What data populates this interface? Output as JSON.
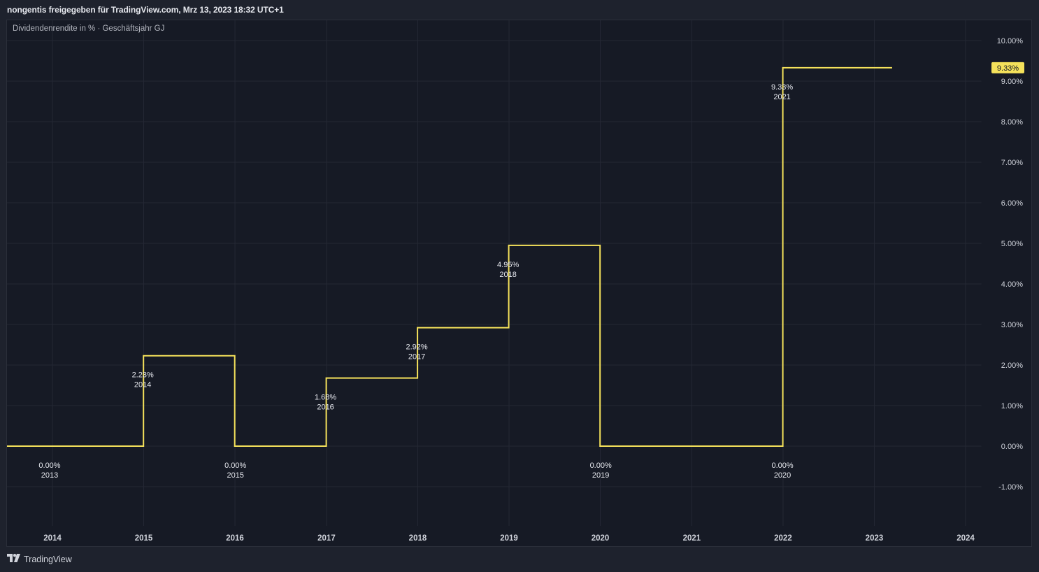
{
  "header": {
    "shared_by": "nongentis freigegeben für TradingView.com, Mrz 13, 2023 18:32 UTC+1"
  },
  "legend": {
    "title": "Dividendenrendite in % · Geschäftsjahr GJ"
  },
  "footer": {
    "brand": "TradingView",
    "logo_icon": "tradingview-logo-icon"
  },
  "colors": {
    "background": "#161a25",
    "frame": "#1e222d",
    "grid": "#242834",
    "line": "#f5e25b",
    "text": "#d1d4dc",
    "badge_bg": "#f5e25b",
    "badge_text": "#131722"
  },
  "chart_data": {
    "type": "line",
    "step": true,
    "title": "",
    "xlabel": "",
    "ylabel": "",
    "ylim": [
      -1.0,
      10.0
    ],
    "xlim": [
      "2013-07-01",
      "2024-01-31"
    ],
    "y_ticks": [
      "10.00%",
      "9.00%",
      "8.00%",
      "7.00%",
      "6.00%",
      "5.00%",
      "4.00%",
      "3.00%",
      "2.00%",
      "1.00%",
      "0.00%",
      "-1.00%"
    ],
    "x_ticks": [
      "2014",
      "2015",
      "2016",
      "2017",
      "2018",
      "2019",
      "2020",
      "2021",
      "2022",
      "2023",
      "2024"
    ],
    "grid": true,
    "series": [
      {
        "points": [
          {
            "fy": "2013",
            "value": 0.0,
            "label": "0.00%",
            "start": "2013-07-01",
            "end": "2014-12-31"
          },
          {
            "fy": "2014",
            "value": 2.23,
            "label": "2.23%",
            "start": "2014-12-31",
            "end": "2015-12-31"
          },
          {
            "fy": "2015",
            "value": 0.0,
            "label": "0.00%",
            "start": "2015-12-31",
            "end": "2016-12-31"
          },
          {
            "fy": "2016",
            "value": 1.68,
            "label": "1.68%",
            "start": "2016-12-31",
            "end": "2017-12-31"
          },
          {
            "fy": "2017",
            "value": 2.92,
            "label": "2.92%",
            "start": "2017-12-31",
            "end": "2018-12-31"
          },
          {
            "fy": "2018",
            "value": 4.95,
            "label": "4.95%",
            "start": "2018-12-31",
            "end": "2019-12-31"
          },
          {
            "fy": "2019",
            "value": 0.0,
            "label": "0.00%",
            "start": "2019-12-31",
            "end": "2020-12-31"
          },
          {
            "fy": "2020",
            "value": 0.0,
            "label": "0.00%",
            "start": "2020-12-31",
            "end": "2021-12-31"
          },
          {
            "fy": "2021",
            "value": 9.33,
            "label": "9.33%",
            "start": "2021-12-31",
            "end": "2023-03-13"
          }
        ]
      }
    ],
    "last_value_badge": "9.33%"
  }
}
